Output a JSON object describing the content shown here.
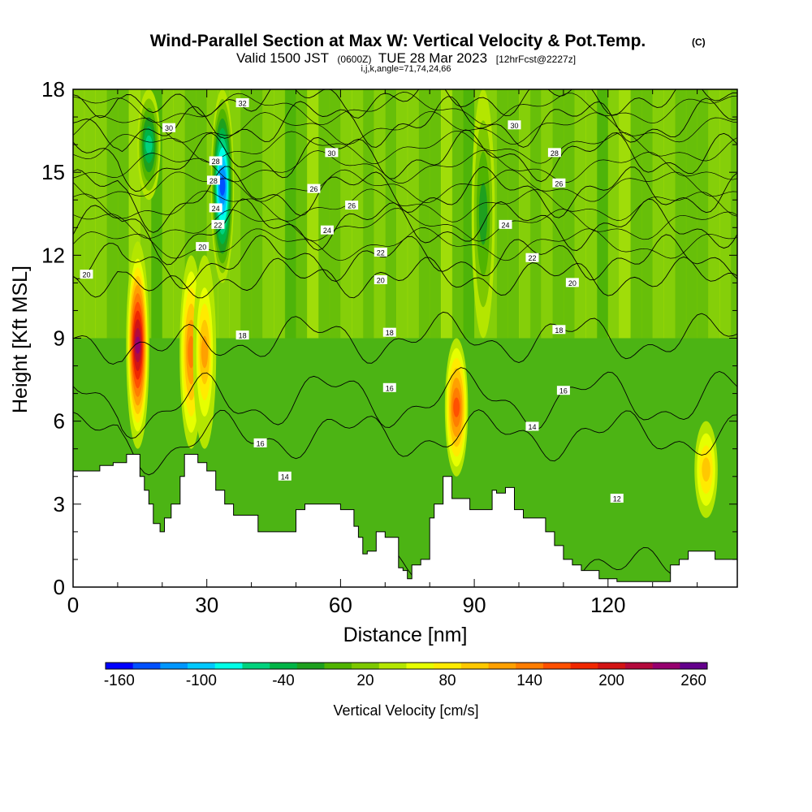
{
  "chart_data": {
    "type": "heatmap",
    "title": "Wind-Parallel Section at Max W: Vertical Velocity & Pot.Temp.",
    "title_mark": "(C)",
    "subtitle_a": "Valid 1500 JST",
    "subtitle_b": "(0600Z)",
    "subtitle_c": "TUE 28 Mar 2023",
    "subtitle_d": "[12hrFcst@2227z]",
    "subtitle2": "i,j,k,angle=71,74,24,66",
    "xlabel": "Distance [nm]",
    "ylabel": "Height [Kft MSL]",
    "xlim": [
      0,
      149
    ],
    "ylim": [
      0,
      18
    ],
    "xticks": [
      "0",
      "30",
      "60",
      "90",
      "120"
    ],
    "xtick_values": [
      0,
      30,
      60,
      90,
      120
    ],
    "yticks": [
      "0",
      "3",
      "6",
      "9",
      "12",
      "15",
      "18"
    ],
    "ytick_values": [
      0,
      3,
      6,
      9,
      12,
      15,
      18
    ],
    "colorbar": {
      "label": "Vertical Velocity [cm/s]",
      "ticks": [
        "-160",
        "-100",
        "-40",
        "20",
        "80",
        "140",
        "200",
        "260"
      ],
      "colors": [
        "#0000ff",
        "#0050ff",
        "#0096ff",
        "#00c8ff",
        "#00ffe6",
        "#00d27d",
        "#00b446",
        "#1ea01e",
        "#50b400",
        "#7dc800",
        "#b4e600",
        "#e6ff00",
        "#ffeb00",
        "#ffc800",
        "#ffa000",
        "#ff7d00",
        "#ff5000",
        "#f02800",
        "#d21414",
        "#b40a3c",
        "#96006e",
        "#64008c"
      ]
    },
    "w_features": [
      {
        "x": 14.5,
        "z_bottom": 5,
        "z_top": 12.5,
        "peak_w": 230
      },
      {
        "x": 26.5,
        "z_bottom": 5,
        "z_top": 12,
        "peak_w": 120
      },
      {
        "x": 29.5,
        "z_bottom": 5,
        "z_top": 12,
        "peak_w": 110
      },
      {
        "x": 33.5,
        "z_bottom": 11,
        "z_top": 18,
        "peak_w": -160
      },
      {
        "x": 17,
        "z_bottom": 14,
        "z_top": 18,
        "peak_w": -80
      },
      {
        "x": 86,
        "z_bottom": 4,
        "z_top": 9,
        "peak_w": 140
      },
      {
        "x": 142,
        "z_bottom": 2.5,
        "z_top": 6,
        "peak_w": 85
      },
      {
        "x": 92,
        "z_bottom": 9,
        "z_top": 18,
        "peak_w": -40
      }
    ],
    "terrain": [
      [
        0,
        4.2
      ],
      [
        5,
        4.2
      ],
      [
        6,
        4.4
      ],
      [
        9,
        4.5
      ],
      [
        12,
        4.8
      ],
      [
        14,
        4.8
      ],
      [
        15,
        4.0
      ],
      [
        16,
        3.5
      ],
      [
        17,
        3.0
      ],
      [
        18,
        2.3
      ],
      [
        19.5,
        2.0
      ],
      [
        20.5,
        2.5
      ],
      [
        22,
        3.0
      ],
      [
        24,
        4.0
      ],
      [
        25,
        4.8
      ],
      [
        27,
        4.8
      ],
      [
        28,
        4.5
      ],
      [
        30,
        4.2
      ],
      [
        32,
        3.5
      ],
      [
        34,
        3.0
      ],
      [
        36,
        2.6
      ],
      [
        40,
        2.6
      ],
      [
        41.5,
        2.0
      ],
      [
        47,
        2.0
      ],
      [
        50,
        2.8
      ],
      [
        52,
        3.0
      ],
      [
        55,
        3.0
      ],
      [
        58,
        3.0
      ],
      [
        60,
        2.8
      ],
      [
        63,
        2.2
      ],
      [
        64,
        1.8
      ],
      [
        65,
        1.2
      ],
      [
        66,
        1.3
      ],
      [
        68,
        2.0
      ],
      [
        70,
        1.8
      ],
      [
        73,
        0.7
      ],
      [
        74,
        0.6
      ],
      [
        75,
        0.3
      ],
      [
        76,
        0.8
      ],
      [
        78,
        1.0
      ],
      [
        80,
        2.5
      ],
      [
        81,
        3.0
      ],
      [
        83,
        4.0
      ],
      [
        85,
        3.2
      ],
      [
        87,
        3.2
      ],
      [
        89,
        2.8
      ],
      [
        92,
        2.8
      ],
      [
        94,
        3.5
      ],
      [
        95,
        3.4
      ],
      [
        97,
        3.6
      ],
      [
        99,
        2.8
      ],
      [
        101,
        2.5
      ],
      [
        104,
        2.5
      ],
      [
        106,
        2.0
      ],
      [
        108,
        1.5
      ],
      [
        110,
        1.0
      ],
      [
        112,
        0.8
      ],
      [
        114,
        0.6
      ],
      [
        116,
        0.6
      ],
      [
        118,
        0.3
      ],
      [
        122,
        0.2
      ],
      [
        126,
        0.2
      ],
      [
        131,
        0.2
      ],
      [
        134,
        0.8
      ],
      [
        136,
        1.0
      ],
      [
        138,
        1.3
      ],
      [
        142,
        1.3
      ],
      [
        144,
        1.0
      ],
      [
        149,
        1.0
      ]
    ],
    "theta_contours": [
      {
        "value": "12",
        "base_z": 0.8,
        "amp": 0.3,
        "label_at": [
          122,
          3.2
        ]
      },
      {
        "value": "14",
        "base_z": 5.5,
        "amp": 0.6,
        "label_at": [
          103,
          5.8
        ]
      },
      {
        "value": "16",
        "base_z": 6.8,
        "amp": 0.8,
        "label_at": [
          110,
          7.1
        ]
      },
      {
        "value": "18",
        "base_z": 9.0,
        "amp": 0.6,
        "label_at": [
          109,
          9.3
        ]
      },
      {
        "value": "20",
        "base_z": 11.2,
        "amp": 0.4,
        "label_at": [
          112,
          11.0
        ]
      },
      {
        "value": "22",
        "base_z": 11.9,
        "amp": 0.5,
        "label_at": [
          103,
          11.9
        ]
      },
      {
        "value": "24",
        "base_z": 13.1,
        "amp": 0.6,
        "label_at": [
          97,
          13.1
        ]
      },
      {
        "value": "26",
        "base_z": 14.3,
        "amp": 0.6,
        "label_at": [
          109,
          14.6
        ]
      },
      {
        "value": "28",
        "base_z": 15.6,
        "amp": 0.6,
        "label_at": [
          108,
          15.7
        ]
      },
      {
        "value": "30",
        "base_z": 16.8,
        "amp": 0.6,
        "label_at": [
          99,
          16.7
        ]
      },
      {
        "value": "32",
        "base_z": 17.7,
        "amp": 0.4,
        "label_at": [
          38,
          17.5
        ]
      }
    ],
    "contour_labels": [
      {
        "text": "30",
        "x": 21.5,
        "y": 16.6
      },
      {
        "text": "30",
        "x": 58,
        "y": 15.7
      },
      {
        "text": "28",
        "x": 32,
        "y": 15.4
      },
      {
        "text": "28",
        "x": 31.5,
        "y": 14.7
      },
      {
        "text": "24",
        "x": 32,
        "y": 13.7
      },
      {
        "text": "22",
        "x": 32.5,
        "y": 13.1
      },
      {
        "text": "20",
        "x": 29,
        "y": 12.3
      },
      {
        "text": "20",
        "x": 3,
        "y": 11.3
      },
      {
        "text": "26",
        "x": 54,
        "y": 14.4
      },
      {
        "text": "26",
        "x": 62.5,
        "y": 13.8
      },
      {
        "text": "24",
        "x": 57,
        "y": 12.9
      },
      {
        "text": "22",
        "x": 69,
        "y": 12.1
      },
      {
        "text": "20",
        "x": 69,
        "y": 11.1
      },
      {
        "text": "18",
        "x": 38,
        "y": 9.1
      },
      {
        "text": "18",
        "x": 71,
        "y": 9.2
      },
      {
        "text": "16",
        "x": 71,
        "y": 7.2
      },
      {
        "text": "16",
        "x": 42,
        "y": 5.2
      },
      {
        "text": "14",
        "x": 47.5,
        "y": 4.0
      }
    ]
  }
}
